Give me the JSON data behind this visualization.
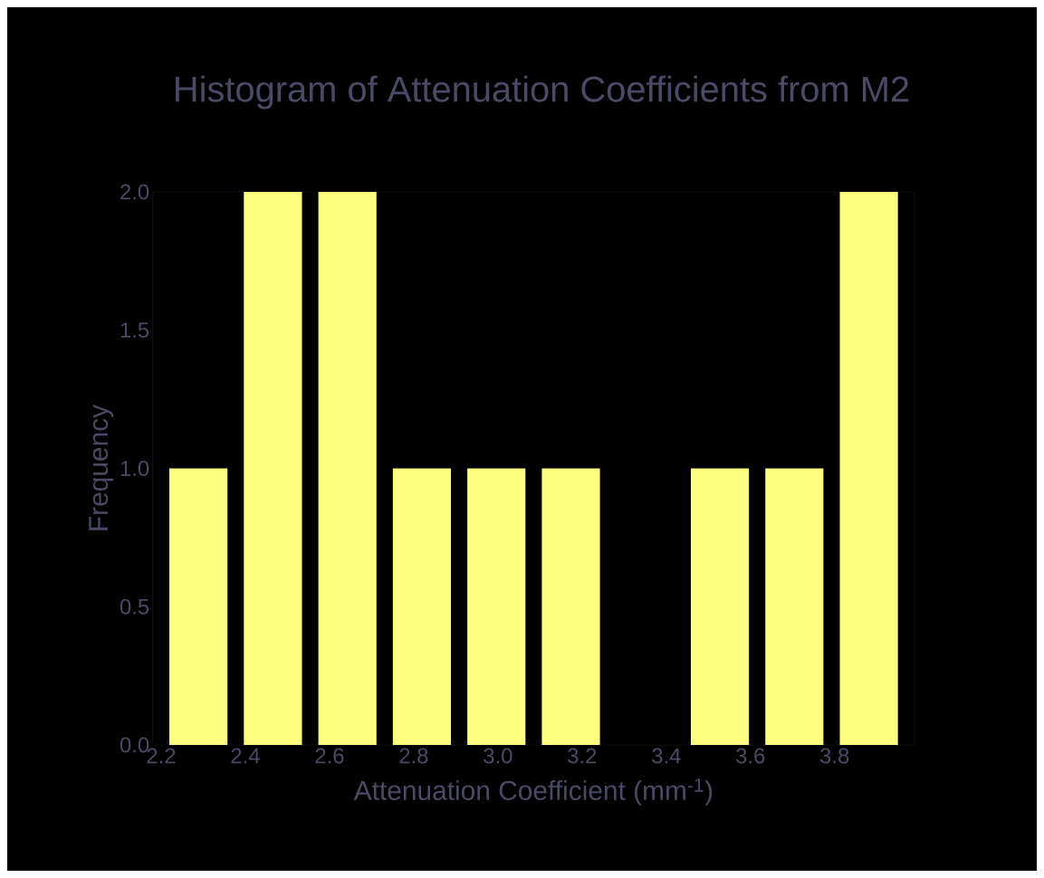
{
  "chart_data": {
    "type": "histogram",
    "title": "Histogram of Attenuation Coefficients from M2",
    "xlabel": "Attenuation Coefficient (mm$^{-1}$)",
    "ylabel": "Frequency",
    "bins": [
      2.2,
      2.377,
      2.554,
      2.731,
      2.908,
      3.085,
      3.262,
      3.439,
      3.616,
      3.793,
      3.97
    ],
    "values": [
      1,
      2,
      2,
      1,
      1,
      1,
      0,
      1,
      1,
      2
    ],
    "color": "#ffff80",
    "xlim": [
      2.18,
      3.99
    ],
    "ylim": [
      0,
      2.0
    ],
    "xticks": [
      {
        "value": 2.2,
        "label": "2.2"
      },
      {
        "value": 2.4,
        "label": "2.4"
      },
      {
        "value": 2.6,
        "label": "2.6"
      },
      {
        "value": 2.8,
        "label": "2.8"
      },
      {
        "value": 3.0,
        "label": "3.0"
      },
      {
        "value": 3.2,
        "label": "3.2"
      },
      {
        "value": 3.4,
        "label": "3.4"
      },
      {
        "value": 3.6,
        "label": "3.6"
      },
      {
        "value": 3.8,
        "label": "3.8"
      }
    ],
    "yticks": [
      {
        "value": 0.0,
        "label": "0.0"
      },
      {
        "value": 0.5,
        "label": "0.5"
      },
      {
        "value": 1.0,
        "label": "1.0"
      },
      {
        "value": 1.5,
        "label": "1.5"
      },
      {
        "value": 2.0,
        "label": "2.0"
      }
    ],
    "grid": false
  }
}
